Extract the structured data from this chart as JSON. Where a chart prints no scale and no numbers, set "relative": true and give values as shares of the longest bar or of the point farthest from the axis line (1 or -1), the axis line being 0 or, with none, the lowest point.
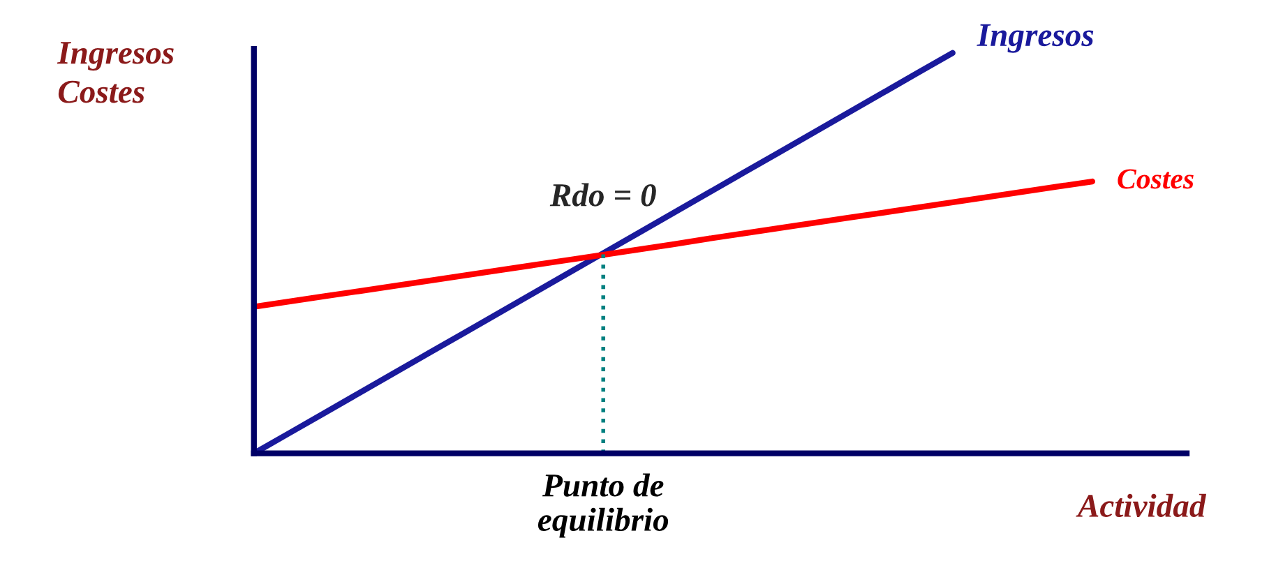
{
  "chart_data": {
    "type": "line",
    "relative": true,
    "ylabel": "Ingresos\nCostes",
    "xlabel": "Actividad",
    "categories": [
      null,
      null,
      null,
      null,
      null,
      null,
      null,
      null,
      null,
      null,
      null,
      null,
      null,
      null,
      null,
      null,
      null,
      null,
      null,
      null,
      null,
      null,
      null,
      null,
      null,
      null,
      null
    ],
    "series": [
      {
        "name": "Ingresos",
        "color": "#1a1a9c",
        "values": [
          0,
          0.05,
          0.1,
          0.15,
          0.2,
          0.25,
          0.3,
          0.35,
          0.4,
          0.45,
          0.5,
          0.55,
          0.6,
          0.65,
          0.7,
          0.75,
          0.8,
          0.85,
          0.9,
          0.95,
          1,
          null,
          null,
          null,
          null,
          null,
          null
        ]
      },
      {
        "name": "Costes",
        "color": "#ff0000",
        "values": [
          0.366,
          0.379,
          0.392,
          0.405,
          0.418,
          0.431,
          0.444,
          0.457,
          0.47,
          0.483,
          0.496,
          0.509,
          0.522,
          0.536,
          0.549,
          0.562,
          0.575,
          0.588,
          0.601,
          0.614,
          0.627,
          0.64,
          0.653,
          0.666,
          0.679,
          null,
          null
        ]
      }
    ],
    "annotations": [
      "Rdo = 0",
      "Punto de\nequilibrio"
    ],
    "marker": "none",
    "line_style": "solid",
    "grid": false,
    "legend": false
  }
}
